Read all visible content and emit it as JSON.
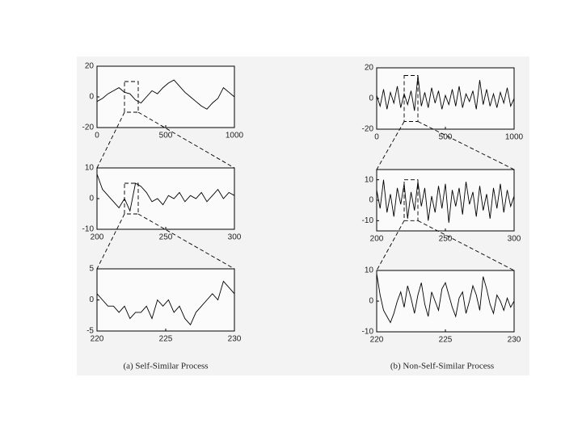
{
  "chart_data": [
    {
      "type": "line",
      "xlim": [
        0,
        1000
      ],
      "ylim": [
        -20,
        20
      ],
      "xticks": [
        0,
        500,
        1000
      ],
      "yticks": [
        -20,
        0,
        20
      ],
      "series": [
        {
          "color": "#000000",
          "x": [
            0,
            40,
            80,
            120,
            160,
            200,
            240,
            280,
            320,
            360,
            400,
            440,
            480,
            520,
            560,
            600,
            640,
            680,
            720,
            760,
            800,
            840,
            880,
            920,
            960,
            1000
          ],
          "values": [
            -3,
            -1,
            2,
            4,
            6,
            3,
            2,
            -2,
            -4,
            0,
            4,
            2,
            6,
            9,
            11,
            7,
            3,
            0,
            -3,
            -6,
            -8,
            -4,
            -1,
            6,
            3,
            0
          ]
        }
      ]
    },
    {
      "type": "line",
      "xlim": [
        200,
        300
      ],
      "ylim": [
        -10,
        10
      ],
      "xticks": [
        200,
        250,
        300
      ],
      "yticks": [
        -10,
        0,
        10
      ],
      "series": [
        {
          "color": "#000000",
          "x": [
            200,
            204,
            208,
            212,
            216,
            220,
            224,
            228,
            232,
            236,
            240,
            244,
            248,
            252,
            256,
            260,
            264,
            268,
            272,
            276,
            280,
            284,
            288,
            292,
            296,
            300
          ],
          "values": [
            8,
            3,
            1,
            -1,
            -3,
            0,
            -4,
            5,
            4,
            2,
            -1,
            0,
            -2,
            1,
            0,
            2,
            -1,
            1,
            0,
            2,
            -1,
            1,
            3,
            0,
            2,
            1
          ]
        }
      ]
    },
    {
      "type": "line",
      "xlim": [
        220,
        230
      ],
      "ylim": [
        -5,
        5
      ],
      "xticks": [
        220,
        225,
        230
      ],
      "yticks": [
        -5,
        0,
        5
      ],
      "series": [
        {
          "color": "#000000",
          "x": [
            220,
            220.4,
            220.8,
            221.2,
            221.6,
            222,
            222.4,
            222.8,
            223.2,
            223.6,
            224,
            224.4,
            224.8,
            225.2,
            225.6,
            226,
            226.4,
            226.8,
            227.2,
            227.6,
            228,
            228.4,
            228.8,
            229.2,
            229.6,
            230
          ],
          "values": [
            1,
            0,
            -1,
            -1,
            -2,
            -1,
            -3,
            -2,
            -2,
            -1,
            -3,
            0,
            -1,
            0,
            -2,
            -1,
            -3,
            -4,
            -2,
            -1,
            0,
            1,
            0,
            3,
            2,
            1
          ]
        }
      ]
    },
    {
      "type": "line",
      "xlim": [
        0,
        1000
      ],
      "ylim": [
        -20,
        20
      ],
      "xticks": [
        0,
        500,
        1000
      ],
      "yticks": [
        -20,
        0,
        20
      ],
      "series": [
        {
          "color": "#000000",
          "x": [
            0,
            25,
            50,
            75,
            100,
            125,
            150,
            175,
            200,
            225,
            250,
            275,
            300,
            325,
            350,
            375,
            400,
            425,
            450,
            475,
            500,
            525,
            550,
            575,
            600,
            625,
            650,
            675,
            700,
            725,
            750,
            775,
            800,
            825,
            850,
            875,
            900,
            925,
            950,
            975,
            1000
          ],
          "values": [
            2,
            -5,
            6,
            -7,
            4,
            -3,
            8,
            -6,
            3,
            -4,
            5,
            -8,
            15,
            -5,
            4,
            -6,
            7,
            -3,
            5,
            -7,
            2,
            -4,
            6,
            -5,
            8,
            -6,
            3,
            -2,
            5,
            -7,
            12,
            -4,
            6,
            -5,
            3,
            -6,
            4,
            -3,
            7,
            -5,
            0
          ]
        }
      ]
    },
    {
      "type": "line",
      "xlim": [
        200,
        300
      ],
      "ylim": [
        -15,
        15
      ],
      "xticks": [
        200,
        250,
        300
      ],
      "yticks": [
        -10,
        0,
        10
      ],
      "series": [
        {
          "color": "#000000",
          "x": [
            200,
            202.5,
            205,
            207.5,
            210,
            212.5,
            215,
            217.5,
            220,
            222.5,
            225,
            227.5,
            230,
            232.5,
            235,
            237.5,
            240,
            242.5,
            245,
            247.5,
            250,
            252.5,
            255,
            257.5,
            260,
            262.5,
            265,
            267.5,
            270,
            272.5,
            275,
            277.5,
            280,
            282.5,
            285,
            287.5,
            290,
            292.5,
            295,
            297.5,
            300
          ],
          "values": [
            5,
            -4,
            10,
            -6,
            3,
            -8,
            6,
            -2,
            8,
            -9,
            4,
            -5,
            9,
            -3,
            6,
            -10,
            2,
            -6,
            7,
            -4,
            8,
            -11,
            5,
            -3,
            6,
            -7,
            9,
            -2,
            4,
            -8,
            7,
            -5,
            3,
            -9,
            6,
            -4,
            8,
            -6,
            5,
            -3,
            2
          ]
        }
      ]
    },
    {
      "type": "line",
      "xlim": [
        220,
        230
      ],
      "ylim": [
        -10,
        10
      ],
      "xticks": [
        220,
        225,
        230
      ],
      "yticks": [
        -10,
        0,
        10
      ],
      "series": [
        {
          "color": "#000000",
          "x": [
            220,
            220.25,
            220.5,
            220.75,
            221,
            221.25,
            221.5,
            221.75,
            222,
            222.25,
            222.5,
            222.75,
            223,
            223.25,
            223.5,
            223.75,
            224,
            224.25,
            224.5,
            224.75,
            225,
            225.25,
            225.5,
            225.75,
            226,
            226.25,
            226.5,
            226.75,
            227,
            227.25,
            227.5,
            227.75,
            228,
            228.25,
            228.5,
            228.75,
            229,
            229.25,
            229.5,
            229.75,
            230
          ],
          "values": [
            9,
            2,
            -3,
            -5,
            -7,
            -4,
            0,
            3,
            -2,
            5,
            1,
            -4,
            2,
            6,
            -1,
            -5,
            3,
            0,
            -3,
            4,
            6,
            2,
            -2,
            -5,
            1,
            3,
            -4,
            0,
            5,
            2,
            -3,
            8,
            4,
            -1,
            -4,
            2,
            0,
            -3,
            1,
            -2,
            0
          ]
        }
      ]
    }
  ],
  "captions": [
    "(a) Self-Similar Process",
    "(b) Non-Self-Similar Process"
  ]
}
